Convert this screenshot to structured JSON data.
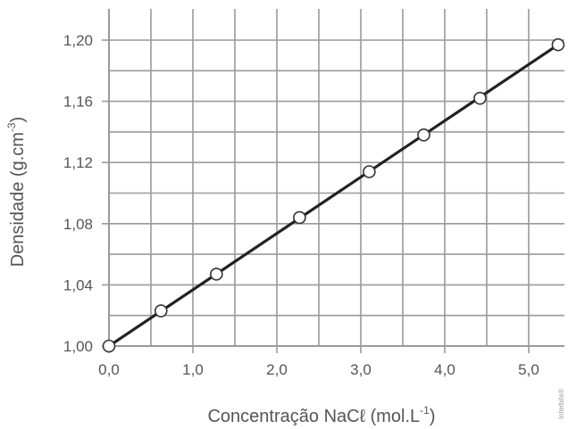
{
  "chart_data": {
    "type": "scatter",
    "xlabel": {
      "main": "Concentração NaCℓ (mol.L",
      "sup": "-1",
      "close": ")"
    },
    "ylabel": {
      "main": "Densidade (g.cm",
      "sup": "-3",
      "close": ")"
    },
    "xlim": [
      0,
      5.5
    ],
    "ylim": [
      1.0,
      1.22
    ],
    "x_ticks": [
      0,
      1,
      2,
      3,
      4,
      5
    ],
    "x_tick_labels": [
      "0,0",
      "1,0",
      "2,0",
      "3,0",
      "4,0",
      "5,0"
    ],
    "y_ticks": [
      1.0,
      1.04,
      1.08,
      1.12,
      1.16,
      1.2
    ],
    "y_tick_labels": [
      "1,00",
      "1,04",
      "1,08",
      "1,12",
      "1,16",
      "1,20"
    ],
    "x_minor_grid": [
      0.5,
      1.5,
      2.5,
      3.5,
      4.5
    ],
    "y_minor_grid": [
      1.02,
      1.06,
      1.1,
      1.14,
      1.18
    ],
    "grid": true,
    "series": [
      {
        "points": [
          {
            "x": 0.0,
            "y": 1.0
          },
          {
            "x": 0.62,
            "y": 1.023
          },
          {
            "x": 1.28,
            "y": 1.047
          },
          {
            "x": 2.27,
            "y": 1.084
          },
          {
            "x": 3.1,
            "y": 1.114
          },
          {
            "x": 3.75,
            "y": 1.138
          },
          {
            "x": 4.42,
            "y": 1.162
          },
          {
            "x": 5.35,
            "y": 1.197
          }
        ]
      }
    ],
    "trendline": {
      "x": [
        0,
        5.35
      ],
      "y": [
        1.0,
        1.197
      ]
    },
    "colors": {
      "grid": "#9a9a9a",
      "line": "#222222",
      "marker_fill": "#ffffff",
      "marker_stroke": "#333333",
      "text": "#555555"
    },
    "credit": "Interbits®"
  }
}
